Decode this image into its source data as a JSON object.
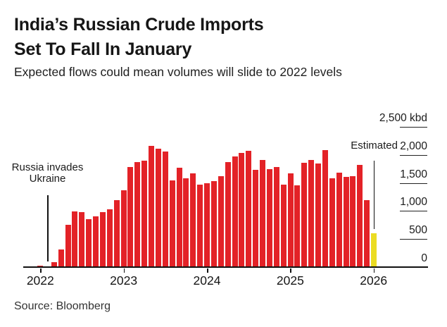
{
  "header": {
    "title_line1": "India’s Russian Crude Imports",
    "title_line2": "Set To Fall In January",
    "subtitle": "Expected flows could mean volumes will slide to 2022 levels"
  },
  "annotations": {
    "invasion_line1": "Russia invades",
    "invasion_line2": "Ukraine",
    "estimated_label": "Estimated"
  },
  "footer": {
    "source": "Source: Bloomberg"
  },
  "chart_data": {
    "type": "bar",
    "title": "India’s Russian Crude Imports Set To Fall In January",
    "unit": "kbd",
    "ylim": [
      0,
      2500
    ],
    "grid": "off",
    "y_axis_side": "right",
    "colors": {
      "bar": "#e32227",
      "estimated_bar": "#ebdc23",
      "axis": "#111111"
    },
    "x": [
      "2022-01",
      "2022-02",
      "2022-03",
      "2022-04",
      "2022-05",
      "2022-06",
      "2022-07",
      "2022-08",
      "2022-09",
      "2022-10",
      "2022-11",
      "2022-12",
      "2023-01",
      "2023-02",
      "2023-03",
      "2023-04",
      "2023-05",
      "2023-06",
      "2023-07",
      "2023-08",
      "2023-09",
      "2023-10",
      "2023-11",
      "2023-12",
      "2024-01",
      "2024-02",
      "2024-03",
      "2024-04",
      "2024-05",
      "2024-06",
      "2024-07",
      "2024-08",
      "2024-09",
      "2024-10",
      "2024-11",
      "2024-12",
      "2025-01",
      "2025-02",
      "2025-03",
      "2025-04",
      "2025-05",
      "2025-06",
      "2025-07",
      "2025-08",
      "2025-09",
      "2025-10",
      "2025-11",
      "2025-12",
      "2026-01"
    ],
    "values": [
      30,
      10,
      90,
      310,
      750,
      990,
      980,
      855,
      910,
      985,
      1030,
      1195,
      1375,
      1790,
      1875,
      1895,
      2155,
      2105,
      2055,
      1540,
      1775,
      1585,
      1675,
      1465,
      1490,
      1535,
      1625,
      1875,
      1970,
      2030,
      2070,
      1730,
      1910,
      1750,
      1785,
      1465,
      1665,
      1460,
      1855,
      1915,
      1845,
      2085,
      1585,
      1680,
      1605,
      1615,
      1820,
      1190,
      600
    ],
    "estimated_index": 48,
    "y_axis": {
      "ticks": [
        {
          "label": "2,500 kbd",
          "value": 2500
        },
        {
          "label": "2,000",
          "value": 2000
        },
        {
          "label": "1,500",
          "value": 1500
        },
        {
          "label": "1,000",
          "value": 1000
        },
        {
          "label": "500",
          "value": 500
        },
        {
          "label": "0",
          "value": 0
        }
      ]
    },
    "x_axis": {
      "labels": [
        "2022",
        "2023",
        "2024",
        "2025",
        "2026"
      ]
    }
  }
}
